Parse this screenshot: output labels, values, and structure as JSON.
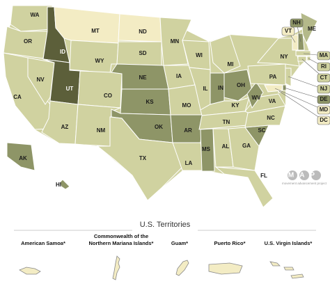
{
  "states": [
    {
      "label": "WA",
      "color": "#d0d2a0"
    },
    {
      "label": "OR",
      "color": "#d0d2a0"
    },
    {
      "label": "CA",
      "color": "#d0d2a0"
    },
    {
      "label": "NV",
      "color": "#d0d2a0"
    },
    {
      "label": "ID",
      "color": "#5c5f3a"
    },
    {
      "label": "MT",
      "color": "#f3ecc4"
    },
    {
      "label": "WY",
      "color": "#d0d2a0"
    },
    {
      "label": "UT",
      "color": "#5c5f3a"
    },
    {
      "label": "AZ",
      "color": "#d0d2a0"
    },
    {
      "label": "CO",
      "color": "#d0d2a0"
    },
    {
      "label": "NM",
      "color": "#d0d2a0"
    },
    {
      "label": "ND",
      "color": "#f3ecc4"
    },
    {
      "label": "SD",
      "color": "#d0d2a0"
    },
    {
      "label": "NE",
      "color": "#8e9567"
    },
    {
      "label": "KS",
      "color": "#8e9567"
    },
    {
      "label": "OK",
      "color": "#8e9567"
    },
    {
      "label": "TX",
      "color": "#d0d2a0"
    },
    {
      "label": "MN",
      "color": "#d0d2a0"
    },
    {
      "label": "IA",
      "color": "#d0d2a0"
    },
    {
      "label": "MO",
      "color": "#d0d2a0"
    },
    {
      "label": "AR",
      "color": "#8e9567"
    },
    {
      "label": "LA",
      "color": "#d0d2a0"
    },
    {
      "label": "WI",
      "color": "#d0d2a0"
    },
    {
      "label": "IL",
      "color": "#d0d2a0"
    },
    {
      "label": "MI",
      "color": "#d0d2a0"
    },
    {
      "label": "IN",
      "color": "#8e9567"
    },
    {
      "label": "OH",
      "color": "#8e9567"
    },
    {
      "label": "KY",
      "color": "#d0d2a0"
    },
    {
      "label": "TN",
      "color": "#d0d2a0"
    },
    {
      "label": "MS",
      "color": "#8e9567"
    },
    {
      "label": "AL",
      "color": "#d0d2a0"
    },
    {
      "label": "GA",
      "color": "#d0d2a0"
    },
    {
      "label": "FL",
      "color": "#d0d2a0"
    },
    {
      "label": "SC",
      "color": "#8e9567"
    },
    {
      "label": "NC",
      "color": "#d0d2a0"
    },
    {
      "label": "VA",
      "color": "#d0d2a0"
    },
    {
      "label": "WV",
      "color": "#8e9567"
    },
    {
      "label": "PA",
      "color": "#d0d2a0"
    },
    {
      "label": "NY",
      "color": "#d0d2a0"
    },
    {
      "label": "VT",
      "color": "#f3ecc4"
    },
    {
      "label": "NH",
      "color": "#8e9567"
    },
    {
      "label": "ME",
      "color": "#b4b98a"
    },
    {
      "label": "MA",
      "color": "#d0d2a0"
    },
    {
      "label": "RI",
      "color": "#d0d2a0"
    },
    {
      "label": "CT",
      "color": "#d0d2a0"
    },
    {
      "label": "NJ",
      "color": "#d0d2a0"
    },
    {
      "label": "DE",
      "color": "#8e9567"
    },
    {
      "label": "MD",
      "color": "#f3ecc4"
    },
    {
      "label": "DC",
      "color": "#f3ecc4"
    },
    {
      "label": "AK",
      "color": "#8e9567"
    },
    {
      "label": "HI",
      "color": "#8e9567"
    }
  ],
  "logo": {
    "title": "MAP",
    "tagline": "movement advancement project"
  },
  "territories": {
    "title": "U.S. Territories",
    "items": [
      {
        "name": [
          "American Samoa*"
        ],
        "color": "#f3ecc4"
      },
      {
        "name": [
          "Commonwealth of the",
          "Northern Mariana Islands*"
        ],
        "color": "#f3ecc4"
      },
      {
        "name": [
          "Guam*"
        ],
        "color": "#f3ecc4"
      },
      {
        "name": [
          "Puerto Rico*"
        ],
        "color": "#f3ecc4"
      },
      {
        "name": [
          "U.S. Virgin Islands*"
        ],
        "color": "#f3ecc4"
      }
    ]
  }
}
